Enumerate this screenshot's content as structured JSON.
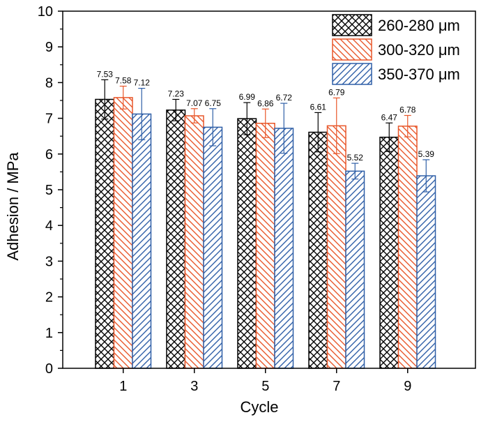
{
  "chart_data": {
    "type": "bar",
    "xlabel": "Cycle",
    "ylabel": "Adhesion / MPa",
    "ylim": [
      0,
      10
    ],
    "yticks": [
      0,
      1,
      2,
      3,
      4,
      5,
      6,
      7,
      8,
      9,
      10
    ],
    "categories": [
      "1",
      "3",
      "5",
      "7",
      "9"
    ],
    "grid": false,
    "legend_position": "top-right",
    "series": [
      {
        "name": "260-280 μm",
        "color": "#000000",
        "pattern": "crosshatch",
        "values": [
          7.53,
          7.23,
          6.99,
          6.61,
          6.47
        ],
        "labels": [
          "7.53",
          "7.23",
          "6.99",
          "6.61",
          "6.47"
        ],
        "error": [
          0.55,
          0.3,
          0.45,
          0.55,
          0.4
        ]
      },
      {
        "name": "300-320 μm",
        "color": "#e8572a",
        "pattern": "diagonal-down",
        "values": [
          7.58,
          7.07,
          6.86,
          6.79,
          6.78
        ],
        "labels": [
          "7.58",
          "7.07",
          "6.86",
          "6.79",
          "6.78"
        ],
        "error": [
          0.32,
          0.2,
          0.4,
          0.78,
          0.3
        ]
      },
      {
        "name": "350-370 μm",
        "color": "#2f5fa7",
        "pattern": "diagonal-up",
        "values": [
          7.12,
          6.75,
          6.72,
          5.52,
          5.39
        ],
        "labels": [
          "7.12",
          "6.75",
          "6.72",
          "5.52",
          "5.39"
        ],
        "error": [
          0.72,
          0.52,
          0.7,
          0.22,
          0.45
        ]
      }
    ]
  }
}
